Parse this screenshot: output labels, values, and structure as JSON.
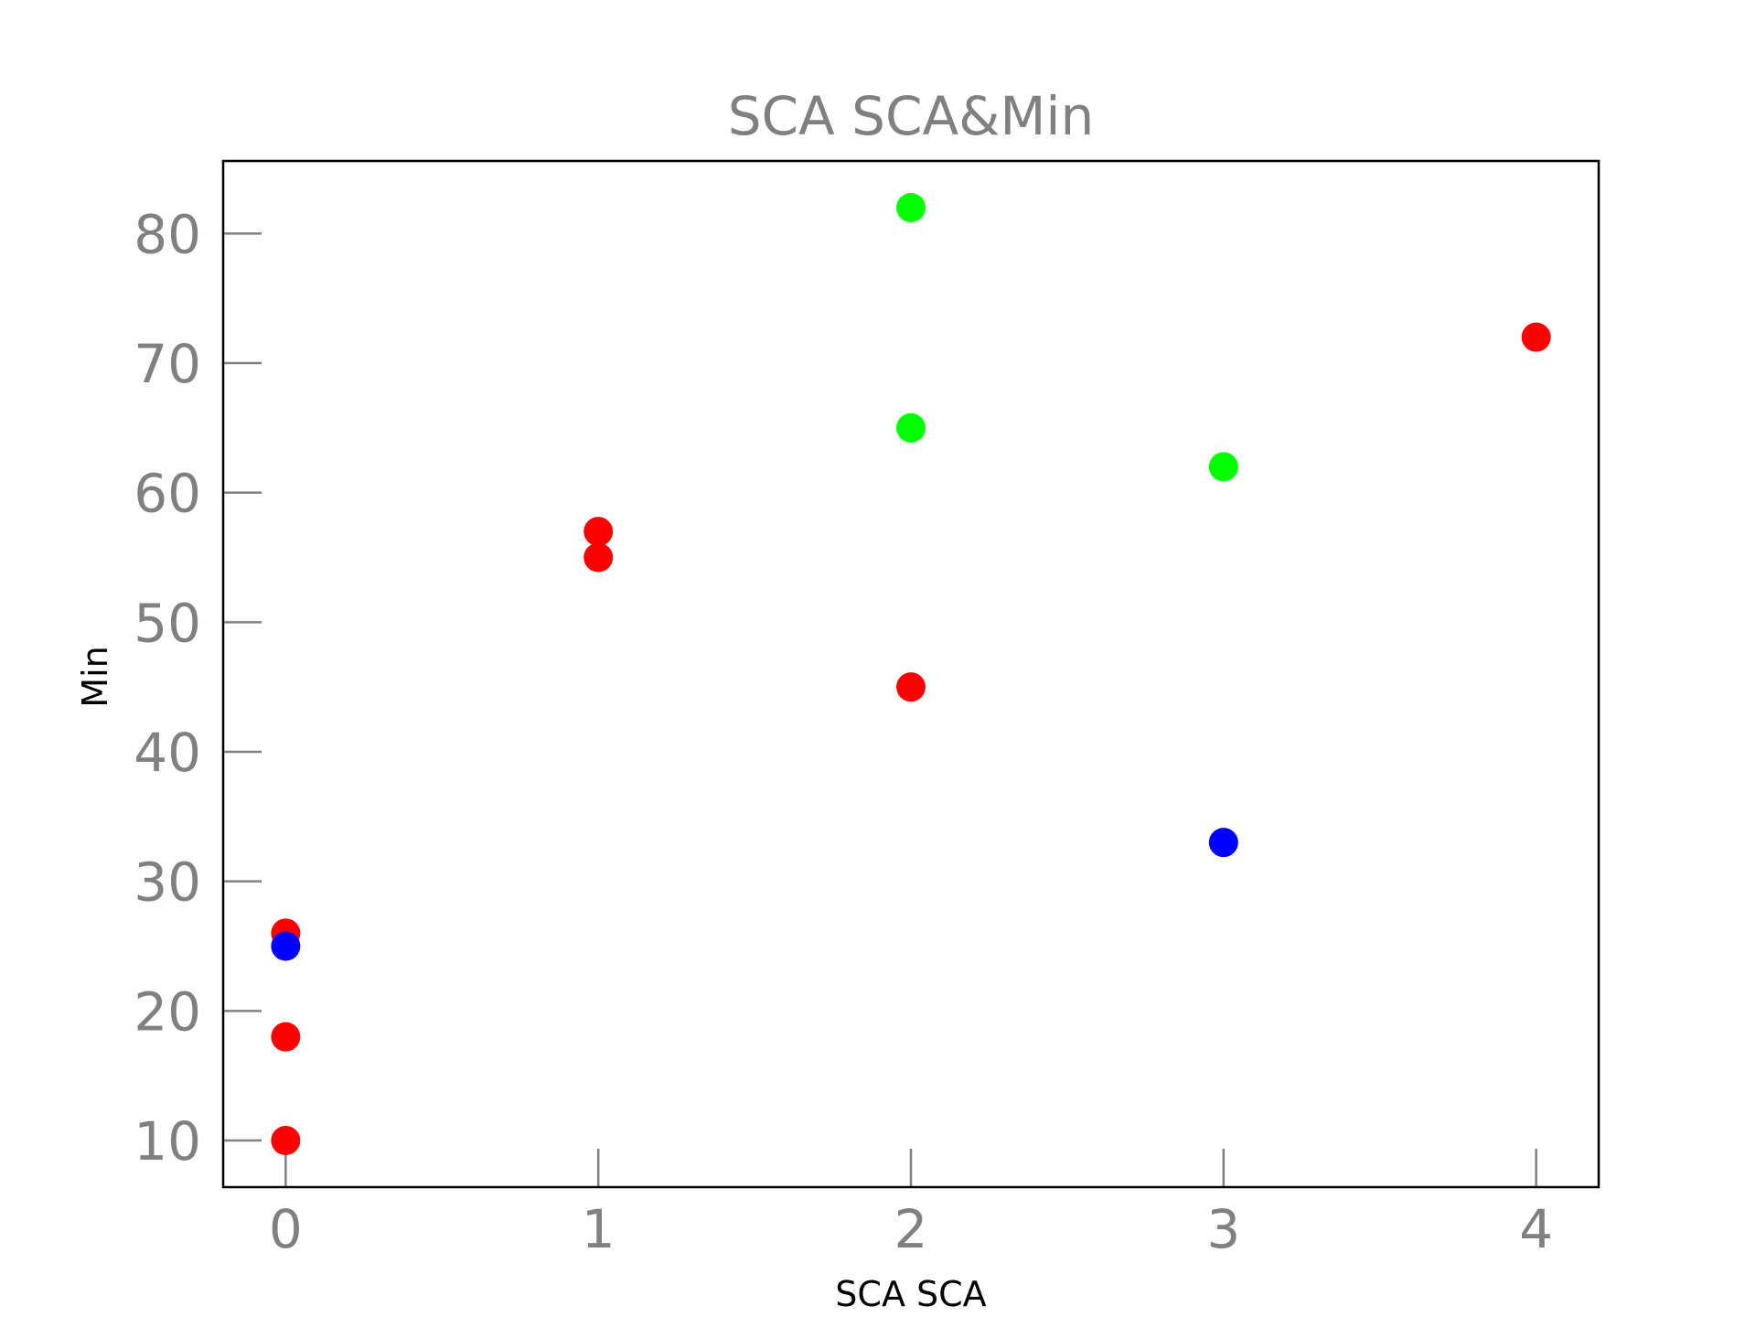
{
  "chart_data": {
    "type": "scatter",
    "title": "SCA SCA&Min",
    "xlabel": "SCA SCA",
    "ylabel": "Min",
    "xlim": [
      -0.2,
      4.2
    ],
    "ylim": [
      6.4,
      85.6
    ],
    "x_ticks": [
      0,
      1,
      2,
      3,
      4
    ],
    "y_ticks": [
      10,
      20,
      30,
      40,
      50,
      60,
      70,
      80
    ],
    "x_tick_labels": [
      "0",
      "1",
      "2",
      "3",
      "4"
    ],
    "y_tick_labels": [
      "10",
      "20",
      "30",
      "40",
      "50",
      "60",
      "70",
      "80"
    ],
    "grid": false,
    "legend": false,
    "series": [
      {
        "color": "#ff0000",
        "points": [
          [
            0,
            10
          ],
          [
            0,
            18
          ],
          [
            0,
            26
          ],
          [
            1,
            55
          ],
          [
            1,
            57
          ],
          [
            2,
            45
          ],
          [
            4,
            72
          ]
        ]
      },
      {
        "color": "#00ff00",
        "points": [
          [
            2,
            82
          ],
          [
            2,
            65
          ],
          [
            3,
            62
          ]
        ]
      },
      {
        "color": "#0000ff",
        "points": [
          [
            0,
            25
          ],
          [
            3,
            33
          ]
        ]
      }
    ]
  }
}
